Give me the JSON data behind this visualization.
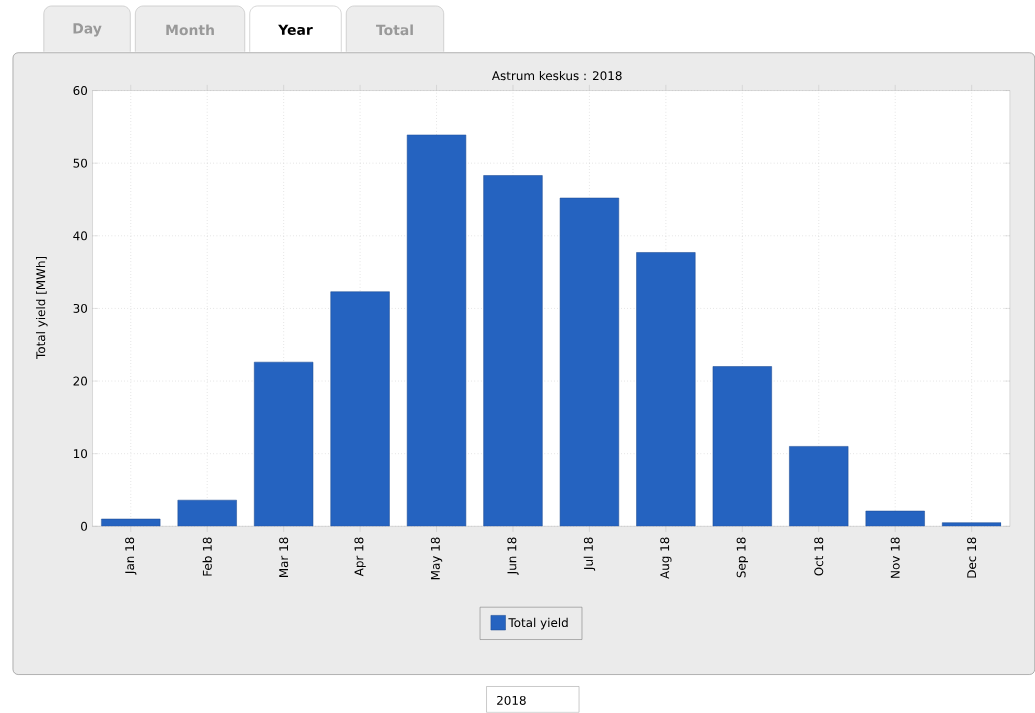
{
  "chart_data": {
    "type": "bar",
    "title": "Astrum keskus : 2018",
    "ylabel": "Total yield [MWh]",
    "categories": [
      "Jan 18",
      "Feb 18",
      "Mar 18",
      "Apr 18",
      "May 18",
      "Jun 18",
      "Jul 18",
      "Aug 18",
      "Sep 18",
      "Oct 18",
      "Nov 18",
      "Dec 18"
    ],
    "series": [
      {
        "name": "Total yield",
        "color": "#2563c0",
        "values": [
          1.0,
          3.6,
          22.6,
          32.3,
          53.9,
          48.3,
          45.2,
          37.7,
          22.0,
          11.0,
          2.1,
          0.5
        ]
      }
    ],
    "ylim": [
      0,
      60
    ],
    "yticks": [
      0,
      10,
      20,
      30,
      40,
      50,
      60
    ],
    "grid": true,
    "legend": "bottom",
    "annotations": [
      "Day",
      "Month",
      "Year",
      "Total",
      "2018"
    ]
  }
}
